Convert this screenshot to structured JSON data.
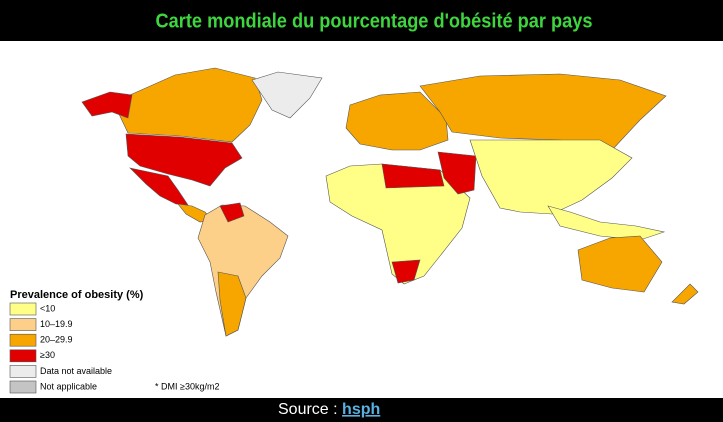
{
  "header": {
    "title": "Carte mondiale du pourcentage d'obésité par pays"
  },
  "legend": {
    "title": "Prevalence of obesity (%)",
    "items": [
      {
        "label": "<10",
        "color": "#ffff88"
      },
      {
        "label": "10–19.9",
        "color": "#fdd08a"
      },
      {
        "label": "20–29.9",
        "color": "#f7a600"
      },
      {
        "label": "≥30",
        "color": "#e00000"
      },
      {
        "label": "Data not available",
        "color": "#ececec"
      },
      {
        "label": "Not applicable",
        "color": "#c4c4c4"
      }
    ]
  },
  "footnote": "* DMI ≥30kg/m2",
  "footer": {
    "label": "Source :",
    "link": "hsph"
  }
}
